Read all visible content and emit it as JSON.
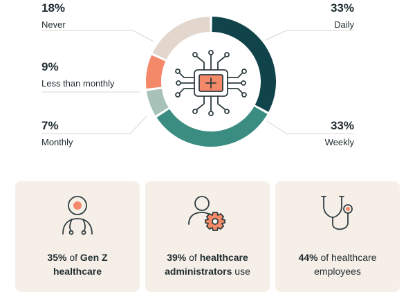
{
  "chart_data": {
    "type": "pie",
    "categories": [
      "Daily",
      "Weekly",
      "Monthly",
      "Less than monthly",
      "Never"
    ],
    "values": [
      33,
      33,
      7,
      9,
      18
    ],
    "labels": [
      "33%",
      "33%",
      "7%",
      "9%",
      "18%"
    ],
    "colors": [
      "#10444a",
      "#3a8d80",
      "#a8c2b9",
      "#f4896a",
      "#e3d6cc"
    ]
  },
  "cards": [
    {
      "bold_lead": "35%",
      "plain_1": " of ",
      "bold_2": "Gen Z",
      "line2_bold": "healthcare",
      "icon": "doctor-icon"
    },
    {
      "bold_lead": "39%",
      "plain_1": " of ",
      "bold_2": "healthcare",
      "line2_bold": "administrators",
      "line2_plain": " use",
      "icon": "admin-gear-icon"
    },
    {
      "bold_lead": "44%",
      "plain_1": " of healthcare",
      "line2_plain": "employees",
      "icon": "stethoscope-icon"
    }
  ],
  "center_icon": "ai-chip-health-icon"
}
